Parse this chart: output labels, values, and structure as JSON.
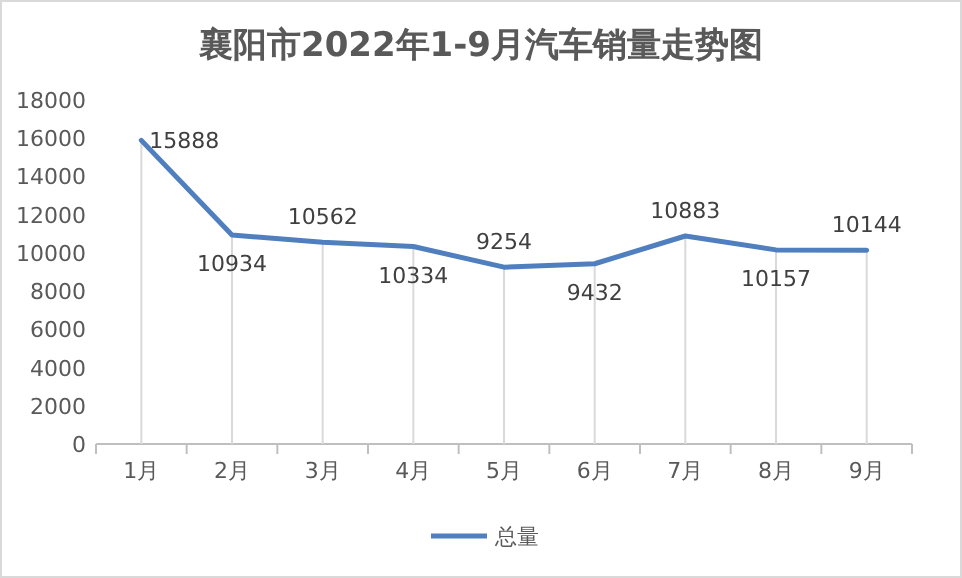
{
  "chart_data": {
    "type": "line",
    "title": "襄阳市2022年1-9月汽车销量走势图",
    "categories": [
      "1月",
      "2月",
      "3月",
      "4月",
      "5月",
      "6月",
      "7月",
      "8月",
      "9月"
    ],
    "series": [
      {
        "name": "总量",
        "color": "#4f7fbf",
        "values": [
          15888,
          10934,
          10562,
          10334,
          9254,
          9432,
          10883,
          10157,
          10144
        ]
      }
    ],
    "ylim": [
      0,
      18000
    ],
    "yticks": [
      0,
      2000,
      4000,
      6000,
      8000,
      10000,
      12000,
      14000,
      16000,
      18000
    ],
    "data_labels": true,
    "grid": "x",
    "legend": "bottom",
    "marker": "none",
    "line_style": "solid"
  }
}
